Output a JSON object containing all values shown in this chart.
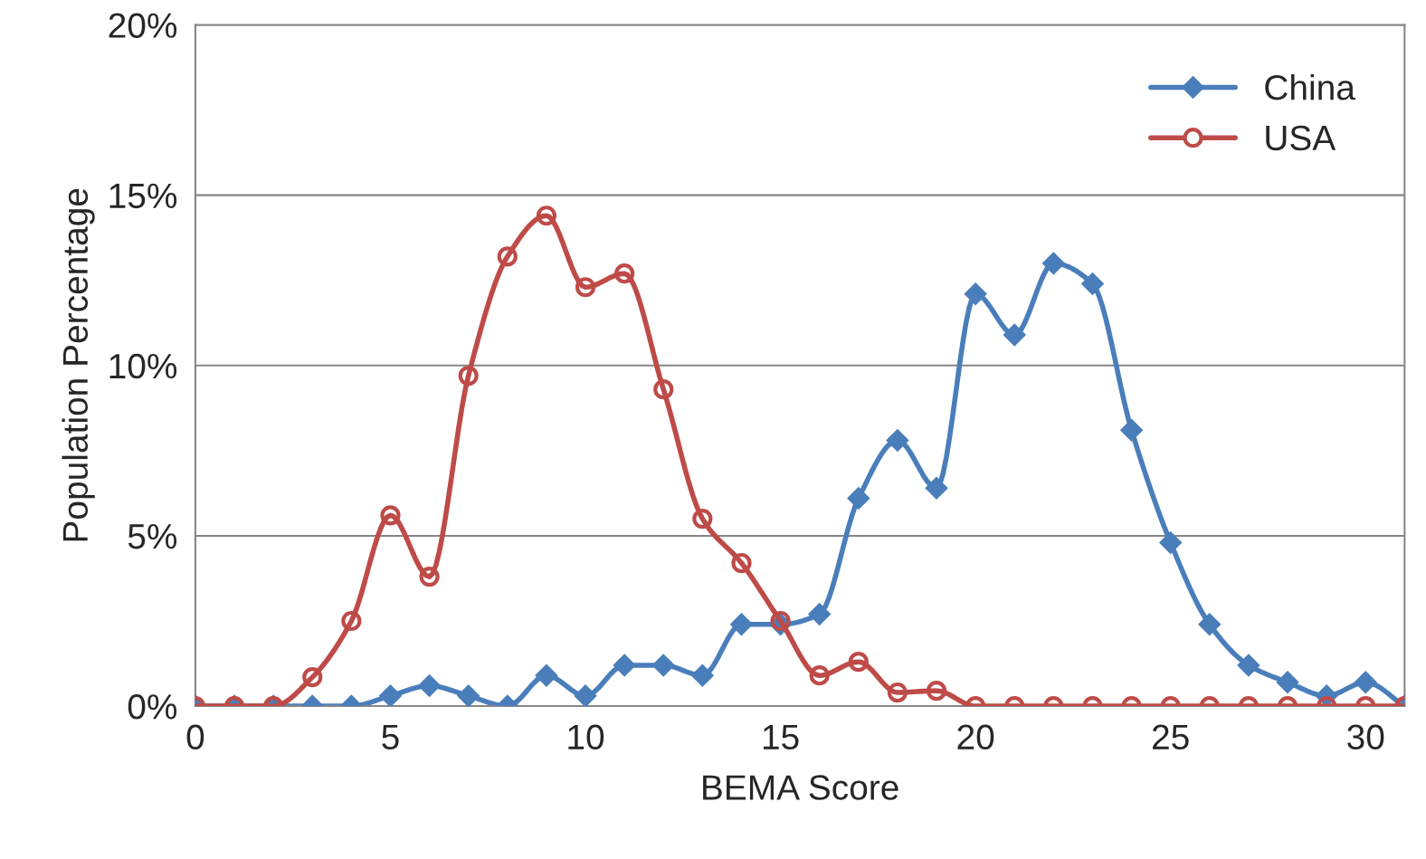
{
  "chart_data": {
    "type": "line",
    "xlabel": "BEMA Score",
    "ylabel": "Population Percentage",
    "x": [
      0,
      1,
      2,
      3,
      4,
      5,
      6,
      7,
      8,
      9,
      10,
      11,
      12,
      13,
      14,
      15,
      16,
      17,
      18,
      19,
      20,
      21,
      22,
      23,
      24,
      25,
      26,
      27,
      28,
      29,
      30,
      31
    ],
    "series": [
      {
        "name": "China",
        "color": "#4a7ebb",
        "marker": "diamond",
        "values": [
          0,
          0,
          0,
          0,
          0,
          0.3,
          0.6,
          0.3,
          0,
          0.9,
          0.3,
          1.2,
          1.2,
          0.9,
          2.4,
          2.4,
          2.7,
          6.1,
          7.8,
          6.4,
          12.1,
          10.9,
          13.0,
          12.4,
          8.1,
          4.8,
          2.4,
          1.2,
          0.7,
          0.3,
          0.7,
          0
        ]
      },
      {
        "name": "USA",
        "color": "#be4b48",
        "marker": "circle",
        "values": [
          0,
          0,
          0,
          0.85,
          2.5,
          5.6,
          3.8,
          9.7,
          13.2,
          14.4,
          12.3,
          12.7,
          9.3,
          5.5,
          4.2,
          2.5,
          0.9,
          1.3,
          0.4,
          0.45,
          0,
          0,
          0,
          0,
          0,
          0,
          0,
          0,
          0,
          0,
          0,
          0
        ]
      }
    ],
    "xlim": [
      0,
      31
    ],
    "xticks": [
      0,
      5,
      10,
      15,
      20,
      25,
      30
    ],
    "ylim": [
      0,
      20
    ],
    "yticks": [
      {
        "value": 0,
        "label": "0%"
      },
      {
        "value": 5,
        "label": "5%"
      },
      {
        "value": 10,
        "label": "10%"
      },
      {
        "value": 15,
        "label": "15%"
      },
      {
        "value": 20,
        "label": "20%"
      }
    ],
    "grid": "y",
    "legend": "top right",
    "line_style": "solid"
  }
}
